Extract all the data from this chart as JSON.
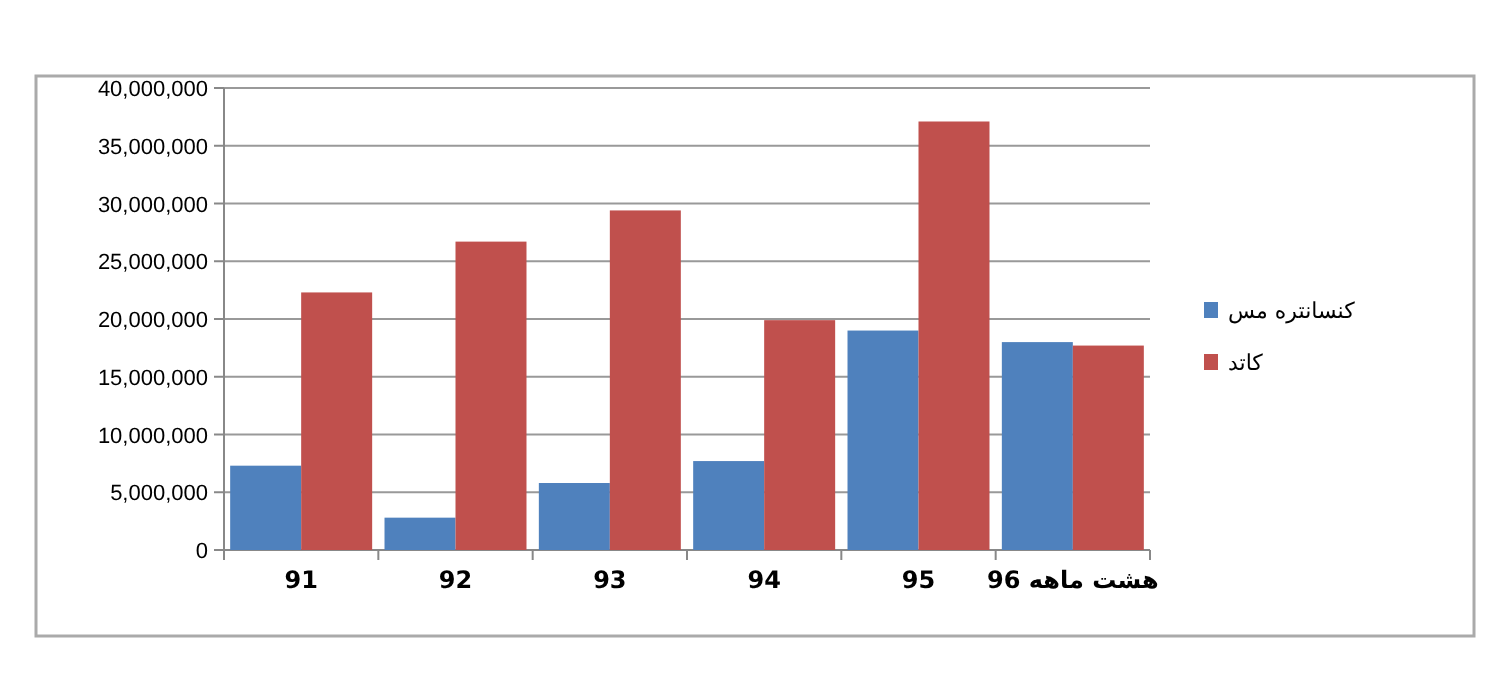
{
  "chart_data": {
    "type": "bar",
    "categories": [
      "91",
      "92",
      "93",
      "94",
      "95",
      "هشت ماهه 96"
    ],
    "series": [
      {
        "name": "کنسانتره مس",
        "color": "#4f81bd",
        "values": [
          7300000,
          2800000,
          5800000,
          7700000,
          19000000,
          18000000
        ]
      },
      {
        "name": "کاتد",
        "color": "#c0504d",
        "values": [
          22300000,
          26700000,
          29400000,
          19900000,
          37100000,
          17700000
        ]
      }
    ],
    "ylim": [
      0,
      40000000
    ],
    "yticks": [
      0,
      {
        "value": 5000000,
        "label": "5,000,000"
      },
      {
        "value": 10000000,
        "label": "10,000,000"
      },
      {
        "value": 15000000,
        "label": "15,000,000"
      },
      {
        "value": 20000000,
        "label": "20,000,000"
      },
      {
        "value": 25000000,
        "label": "25,000,000"
      },
      {
        "value": 30000000,
        "label": "30,000,000"
      },
      {
        "value": 35000000,
        "label": "35,000,000"
      },
      {
        "value": 40000000,
        "label": "40,000,000"
      }
    ],
    "grid": "y",
    "legend": "right"
  }
}
